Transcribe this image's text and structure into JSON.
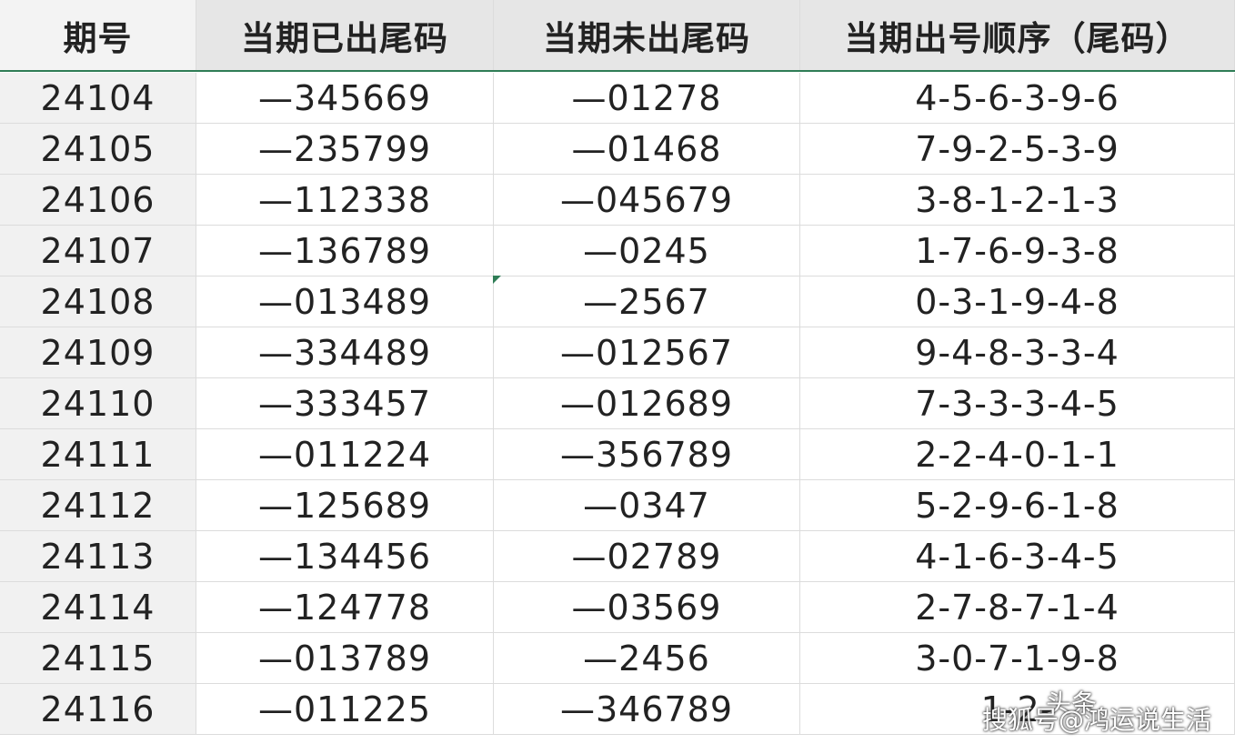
{
  "table": {
    "header": [
      "期号",
      "当期已出尾码",
      "当期未出尾码",
      "当期出号顺序（尾码）"
    ],
    "rows": [
      [
        "24104",
        "—345669",
        "—01278",
        "4-5-6-3-9-6"
      ],
      [
        "24105",
        "—235799",
        "—01468",
        "7-9-2-5-3-9"
      ],
      [
        "24106",
        "—112338",
        "—045679",
        "3-8-1-2-1-3"
      ],
      [
        "24107",
        "—136789",
        "—0245",
        "1-7-6-9-3-8"
      ],
      [
        "24108",
        "—013489",
        "—2567",
        "0-3-1-9-4-8"
      ],
      [
        "24109",
        "—334489",
        "—012567",
        "9-4-8-3-3-4"
      ],
      [
        "24110",
        "—333457",
        "—012689",
        "7-3-3-3-4-5"
      ],
      [
        "24111",
        "—011224",
        "—356789",
        "2-2-4-0-1-1"
      ],
      [
        "24112",
        "—125689",
        "—0347",
        "5-2-9-6-1-8"
      ],
      [
        "24113",
        "—134456",
        "—02789",
        "4-1-6-3-4-5"
      ],
      [
        "24114",
        "—124778",
        "—03569",
        "2-7-8-7-1-4"
      ],
      [
        "24115",
        "—013789",
        "—2456",
        "3-0-7-1-9-8"
      ],
      [
        "24116",
        "—011225",
        "—346789",
        "1-2-"
      ]
    ]
  },
  "watermark": {
    "left": "头条",
    "right": "搜狐号@鸿运说生活"
  }
}
